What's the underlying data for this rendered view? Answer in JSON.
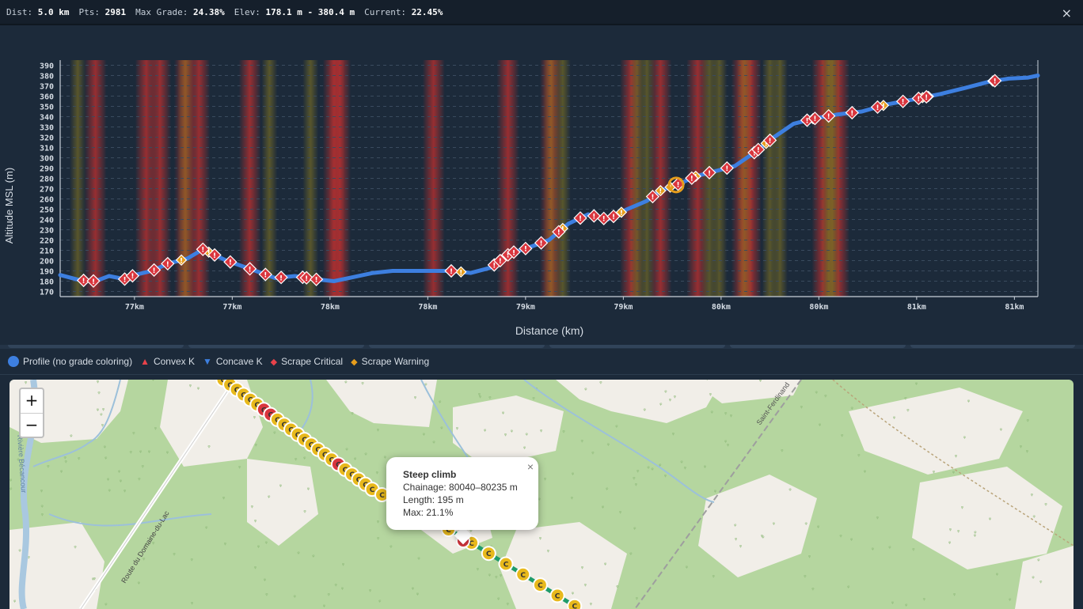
{
  "stats": {
    "dist_label": "Dist:",
    "dist_value": "5.0 km",
    "pts_label": "Pts:",
    "pts_value": "2981",
    "maxgrade_label": "Max Grade:",
    "maxgrade_value": "24.38%",
    "elev_label": "Elev:",
    "elev_value": "178.1 m - 380.4 m",
    "current_label": "Current:",
    "current_value": "22.45%",
    "close_icon": "×"
  },
  "colors": {
    "profile_line": "#3d7fe0",
    "critical": "#d9363e",
    "warning": "#e69d1c",
    "band_red": "#c0302f",
    "band_yellow": "#8a7a20",
    "axis": "#c9d1da",
    "bg": "#1c2a3a"
  },
  "chart_data": {
    "type": "line",
    "title": "",
    "xlabel": "Distance (km)",
    "ylabel": "Altitude MSL (m)",
    "ylim": [
      165,
      395
    ],
    "y_ticks": [
      170,
      180,
      190,
      200,
      210,
      220,
      230,
      240,
      250,
      260,
      270,
      280,
      290,
      300,
      310,
      320,
      330,
      340,
      350,
      360,
      370,
      380,
      390
    ],
    "x_ticks": [
      "77km",
      "77km",
      "78km",
      "78km",
      "79km",
      "79km",
      "80km",
      "80km",
      "81km",
      "81km"
    ],
    "x_domain": [
      76.55,
      81.55
    ],
    "x_tick_values": [
      76.93,
      77.43,
      77.93,
      78.43,
      78.93,
      79.43,
      79.93,
      80.43,
      80.93,
      81.43
    ],
    "grid": "horizontal dashed",
    "series": [
      {
        "name": "Profile (no grade coloring)",
        "x": [
          76.55,
          76.65,
          76.73,
          76.8,
          76.88,
          76.93,
          77.02,
          77.1,
          77.2,
          77.28,
          77.4,
          77.55,
          77.65,
          77.75,
          77.85,
          77.95,
          78.05,
          78.15,
          78.25,
          78.35,
          78.45,
          78.55,
          78.65,
          78.75,
          78.85,
          78.95,
          79.05,
          79.15,
          79.25,
          79.35,
          79.45,
          79.55,
          79.62,
          79.72,
          79.8,
          79.9,
          80.0,
          80.1,
          80.2,
          80.3,
          80.4,
          80.52,
          80.65,
          80.78,
          80.92,
          81.05,
          81.18,
          81.3,
          81.4,
          81.5,
          81.55
        ],
        "y": [
          186,
          181,
          180,
          185,
          182,
          186,
          190,
          197,
          202,
          211,
          200,
          190,
          183,
          185,
          182,
          180,
          184,
          188,
          190,
          190,
          190,
          190,
          188,
          193,
          207,
          213,
          220,
          236,
          245,
          240,
          250,
          258,
          268,
          275,
          282,
          287,
          292,
          305,
          320,
          333,
          338,
          342,
          345,
          352,
          357,
          362,
          368,
          374,
          377,
          378,
          380
        ]
      }
    ],
    "critical_markers": [
      76.67,
      76.72,
      76.88,
      76.92,
      77.03,
      77.1,
      77.34,
      77.28,
      77.42,
      77.52,
      77.6,
      77.68,
      77.79,
      77.81,
      77.86,
      78.55,
      78.77,
      78.8,
      78.84,
      78.87,
      78.93,
      79.01,
      79.1,
      79.21,
      79.28,
      79.33,
      79.38,
      79.58,
      79.71,
      79.78,
      79.87,
      79.96,
      80.1,
      80.12,
      80.18,
      80.37,
      80.41,
      80.48,
      80.6,
      80.73,
      80.86,
      80.94,
      80.98,
      81.33
    ],
    "warning_markers": [
      77.17,
      77.31,
      78.6,
      79.12,
      79.42,
      79.62,
      79.67,
      79.8,
      80.16,
      80.4,
      80.76,
      80.96,
      80.99,
      81.32
    ],
    "critical_bands": [
      76.73,
      76.99,
      77.06,
      77.19,
      77.26,
      77.52,
      77.95,
      77.98,
      78.46,
      78.84,
      79.06,
      79.47,
      79.62,
      79.81,
      80.04,
      80.08,
      80.45,
      80.53
    ],
    "warning_bands": [
      76.64,
      77.19,
      77.62,
      77.83,
      79.06,
      79.12,
      79.5,
      79.55,
      79.87,
      79.92,
      80.05,
      80.18,
      80.23,
      80.48,
      80.5
    ]
  },
  "legend": {
    "items": [
      {
        "label": "Profile (no grade coloring)",
        "symbol": "●",
        "color": "#3d7fe0"
      },
      {
        "label": "Convex K",
        "symbol": "▲",
        "color": "#e8424a"
      },
      {
        "label": "Concave K",
        "symbol": "▼",
        "color": "#3d7fe0"
      },
      {
        "label": "Scrape Critical",
        "symbol": "◆",
        "color": "#e8424a"
      },
      {
        "label": "Scrape Warning",
        "symbol": "◆",
        "color": "#e69d1c"
      }
    ]
  },
  "map": {
    "zoom_in": "+",
    "zoom_out": "−",
    "labels": {
      "river": "Rivière Bécancour",
      "road1": "Route du Domaine-du-Lac",
      "road2": "Saint-Ferdinand"
    },
    "marker_letter": "C",
    "popup": {
      "title": "Steep climb",
      "chainage": "Chainage: 80040–80235 m",
      "length": "Length: 195 m",
      "max": "Max: 21.1%",
      "close": "×"
    }
  }
}
